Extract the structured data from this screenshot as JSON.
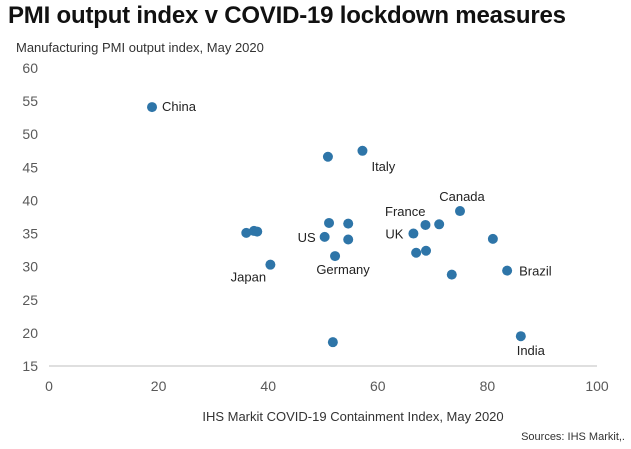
{
  "chart_data": {
    "type": "scatter",
    "title": "PMI output index v COVID-19 lockdown measures",
    "ylabel": "Manufacturing  PMI output  index, May 2020",
    "xlabel": "IHS Markit  COVID-19  Containment  Index, May 2020",
    "source": "Sources: IHS Markit,.",
    "xlim": [
      0,
      100
    ],
    "ylim": [
      15,
      60
    ],
    "x_ticks": [
      "0",
      "20",
      "40",
      "60",
      "80",
      "100"
    ],
    "y_ticks": [
      "15",
      "20",
      "25",
      "30",
      "35",
      "40",
      "45",
      "50",
      "55",
      "60"
    ],
    "grid": false,
    "marker_color": "#2e75a8",
    "points": [
      {
        "x": 18.8,
        "y": 54.1,
        "label": "China"
      },
      {
        "x": 50.9,
        "y": 46.6,
        "label": ""
      },
      {
        "x": 57.2,
        "y": 47.5,
        "label": "Italy"
      },
      {
        "x": 75.0,
        "y": 38.4,
        "label": "Canada"
      },
      {
        "x": 68.7,
        "y": 36.3,
        "label": "France"
      },
      {
        "x": 71.2,
        "y": 36.4,
        "label": ""
      },
      {
        "x": 66.5,
        "y": 35.0,
        "label": "UK"
      },
      {
        "x": 51.1,
        "y": 36.6,
        "label": ""
      },
      {
        "x": 54.6,
        "y": 36.5,
        "label": ""
      },
      {
        "x": 50.3,
        "y": 34.5,
        "label": "US"
      },
      {
        "x": 54.6,
        "y": 34.1,
        "label": ""
      },
      {
        "x": 52.2,
        "y": 31.6,
        "label": "Germany"
      },
      {
        "x": 36.0,
        "y": 35.1,
        "label": ""
      },
      {
        "x": 37.4,
        "y": 35.4,
        "label": ""
      },
      {
        "x": 38.0,
        "y": 35.3,
        "label": ""
      },
      {
        "x": 40.4,
        "y": 30.3,
        "label": "Japan"
      },
      {
        "x": 67.0,
        "y": 32.1,
        "label": ""
      },
      {
        "x": 68.8,
        "y": 32.4,
        "label": ""
      },
      {
        "x": 73.5,
        "y": 28.8,
        "label": ""
      },
      {
        "x": 81.0,
        "y": 34.2,
        "label": ""
      },
      {
        "x": 83.6,
        "y": 29.4,
        "label": "Brazil"
      },
      {
        "x": 86.1,
        "y": 19.5,
        "label": "India"
      },
      {
        "x": 51.8,
        "y": 18.6,
        "label": ""
      }
    ]
  }
}
